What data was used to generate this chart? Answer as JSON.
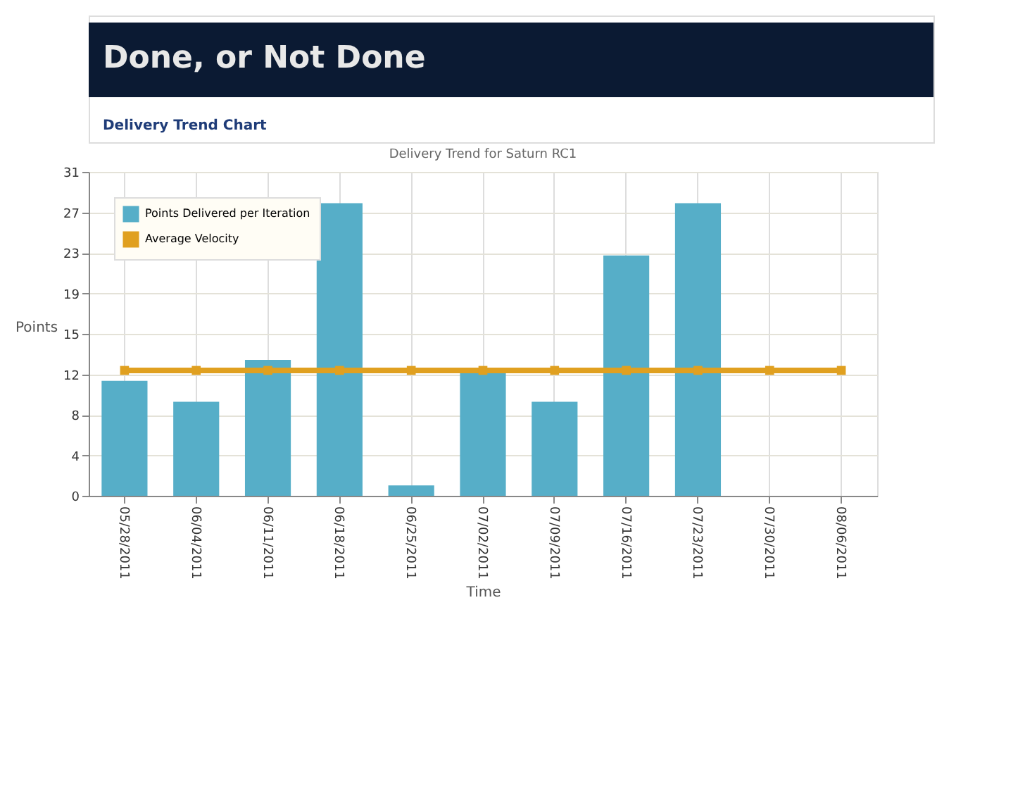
{
  "chart_data": {
    "type": "bar",
    "title": "Delivery Trend for Saturn RC1",
    "xlabel": "Time",
    "ylabel": "Points",
    "annotations": [
      "Done, or Not Done",
      "Delivery Trend Chart"
    ],
    "categories": [
      "05/28/2011",
      "06/04/2011",
      "06/11/2011",
      "06/18/2011",
      "06/25/2011",
      "07/02/2011",
      "07/09/2011",
      "07/16/2011",
      "07/23/2011",
      "07/30/2011",
      "08/06/2011"
    ],
    "series": [
      {
        "name": "Points Delivered per Iteration",
        "type": "bar",
        "color": "#56aec8",
        "values": [
          11,
          9,
          13,
          28,
          1,
          12,
          9,
          23,
          28,
          null,
          null
        ]
      },
      {
        "name": "Average Velocity",
        "type": "line",
        "color": "#e0a020",
        "marker": "square",
        "values": [
          12,
          12,
          12,
          12,
          12,
          12,
          12,
          12,
          12,
          12,
          12
        ]
      }
    ],
    "ylim": [
      0,
      31
    ],
    "yticks": [
      0,
      {
        "value": 3.875,
        "label": "4"
      },
      {
        "value": 7.75,
        "label": "8"
      },
      {
        "value": 11.625,
        "label": "12"
      },
      {
        "value": 15.5,
        "label": "15"
      },
      {
        "value": 19.375,
        "label": "19"
      },
      {
        "value": 23.25,
        "label": "23"
      },
      {
        "value": 27.125,
        "label": "27"
      },
      31
    ],
    "grid": true,
    "legend": "top left"
  }
}
